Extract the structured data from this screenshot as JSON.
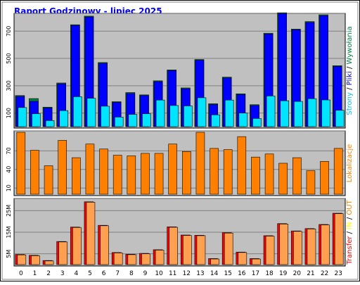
{
  "page": {
    "title": "Raport Godzinowy -  lipiec 2025",
    "colors": {
      "frame_bg": "#ffffff",
      "panel_bg": "#c0c0c0",
      "grid": "#808080",
      "title": "#0000ff",
      "hits_bar": "#0000ff",
      "files_bar": "#00e4ff",
      "pages_bar": "#008040",
      "visits_bar": "#ff8000",
      "out_bar": "#ff0000",
      "in_bar": "#ffa050",
      "kbytes_bar": "#ff8000"
    }
  },
  "chart_data": [
    {
      "type": "bar",
      "panel": "hits",
      "categories": [
        "0",
        "1",
        "2",
        "3",
        "4",
        "5",
        "6",
        "7",
        "8",
        "9",
        "10",
        "11",
        "12",
        "13",
        "14",
        "15",
        "16",
        "17",
        "18",
        "19",
        "20",
        "21",
        "22",
        "23"
      ],
      "yticks": [
        100,
        300,
        500,
        700
      ],
      "ylim": [
        0,
        820
      ],
      "ylabel_parts": [
        {
          "text": "Strony",
          "color": "#00c0ff"
        },
        {
          "text": " / ",
          "color": "#000000"
        },
        {
          "text": "Pliki",
          "color": "#0000ff"
        },
        {
          "text": " / ",
          "color": "#000000"
        },
        {
          "text": "Wywołania",
          "color": "#008040"
        }
      ],
      "series": [
        {
          "name": "Wywołania",
          "color": "#008040",
          "values": [
            228,
            206,
            143,
            320,
            747,
            810,
            470,
            183,
            250,
            233,
            336,
            416,
            284,
            492,
            168,
            363,
            241,
            161,
            685,
            835,
            715,
            770,
            820,
            447
          ]
        },
        {
          "name": "Pliki",
          "color": "#0000ff",
          "values": [
            222,
            186,
            137,
            314,
            742,
            804,
            464,
            178,
            243,
            228,
            330,
            411,
            278,
            487,
            162,
            357,
            235,
            155,
            679,
            829,
            710,
            764,
            813,
            441
          ]
        },
        {
          "name": "Strony",
          "color": "#00e4ff",
          "values": [
            140,
            95,
            45,
            118,
            220,
            208,
            150,
            70,
            90,
            95,
            195,
            155,
            152,
            212,
            87,
            195,
            100,
            60,
            225,
            190,
            185,
            205,
            196,
            120
          ]
        }
      ]
    },
    {
      "type": "bar",
      "panel": "visits",
      "categories": [
        "0",
        "1",
        "2",
        "3",
        "4",
        "5",
        "6",
        "7",
        "8",
        "9",
        "10",
        "11",
        "12",
        "13",
        "14",
        "15",
        "16",
        "17",
        "18",
        "19",
        "20",
        "21",
        "22",
        "23"
      ],
      "yticks": [
        10,
        40,
        70
      ],
      "ylim": [
        0,
        100
      ],
      "ylabel_parts": [
        {
          "text": "Lokalizacje",
          "color": "#ff8000"
        }
      ],
      "series": [
        {
          "name": "Lokalizacje",
          "color": "#ff8000",
          "values": [
            100,
            71,
            46,
            87,
            59,
            81,
            73,
            63,
            62,
            66,
            66,
            81,
            69,
            100,
            74,
            72,
            93,
            60,
            65,
            50,
            59,
            38,
            53,
            74
          ]
        }
      ]
    },
    {
      "type": "bar",
      "panel": "kbytes",
      "categories": [
        "0",
        "1",
        "2",
        "3",
        "4",
        "5",
        "6",
        "7",
        "8",
        "9",
        "10",
        "11",
        "12",
        "13",
        "14",
        "15",
        "16",
        "17",
        "18",
        "19",
        "20",
        "21",
        "22",
        "23"
      ],
      "yticks": [
        "5M",
        "15M",
        "25M"
      ],
      "ytick_values": [
        5,
        15,
        25
      ],
      "ylim": [
        0,
        30
      ],
      "ylabel_parts": [
        {
          "text": "Transfer",
          "color": "#ff0000"
        },
        {
          "text": " / ",
          "color": "#000000"
        },
        {
          "text": "IN",
          "color": "#ffff00"
        },
        {
          "text": " / ",
          "color": "#000000"
        },
        {
          "text": "OUT",
          "color": "#ff8000"
        }
      ],
      "series": [
        {
          "name": "Transfer",
          "color": "#ff0000",
          "values": [
            4.7,
            4.3,
            1.9,
            10.7,
            17.4,
            29.1,
            18.2,
            5.6,
            4.8,
            5.2,
            6.9,
            17.5,
            13.7,
            13.6,
            2.8,
            14.8,
            5.8,
            2.8,
            13.4,
            19.0,
            15.6,
            16.7,
            18.6,
            23.8
          ]
        },
        {
          "name": "OUT",
          "color": "#ffa050",
          "values": [
            4.5,
            4.1,
            1.7,
            10.5,
            17.2,
            28.9,
            18.0,
            5.4,
            4.6,
            5.0,
            6.7,
            17.3,
            13.5,
            13.4,
            2.6,
            14.6,
            5.6,
            2.6,
            13.2,
            18.8,
            15.4,
            16.5,
            18.4,
            23.6
          ]
        }
      ]
    }
  ]
}
